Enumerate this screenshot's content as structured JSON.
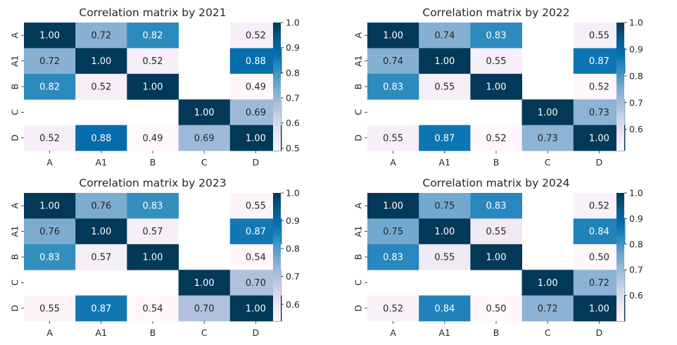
{
  "chart_data": [
    {
      "type": "heatmap",
      "title": "Correlation matrix by 2021",
      "x_labels": [
        "A",
        "A1",
        "B",
        "C",
        "D"
      ],
      "y_labels": [
        "A",
        "A1",
        "B",
        "C",
        "D"
      ],
      "values": [
        [
          1.0,
          0.72,
          0.82,
          null,
          0.52
        ],
        [
          0.72,
          1.0,
          0.52,
          null,
          0.88
        ],
        [
          0.82,
          0.52,
          1.0,
          null,
          0.49
        ],
        [
          null,
          null,
          null,
          1.0,
          0.69
        ],
        [
          0.52,
          0.88,
          0.49,
          0.69,
          1.0
        ]
      ],
      "colorbar": {
        "range": [
          0.49,
          1.0
        ],
        "ticks": [
          "0.5",
          "0.6",
          "0.7",
          "0.8",
          "0.9",
          "1.0"
        ]
      }
    },
    {
      "type": "heatmap",
      "title": "Correlation matrix by 2022",
      "x_labels": [
        "A",
        "A1",
        "B",
        "C",
        "D"
      ],
      "y_labels": [
        "A",
        "A1",
        "B",
        "C",
        "D"
      ],
      "values": [
        [
          1.0,
          0.74,
          0.83,
          null,
          0.55
        ],
        [
          0.74,
          1.0,
          0.55,
          null,
          0.87
        ],
        [
          0.83,
          0.55,
          1.0,
          null,
          0.52
        ],
        [
          null,
          null,
          null,
          1.0,
          0.73
        ],
        [
          0.55,
          0.87,
          0.52,
          0.73,
          1.0
        ]
      ],
      "colorbar": {
        "range": [
          0.52,
          1.0
        ],
        "ticks": [
          "0.6",
          "0.7",
          "0.8",
          "0.9",
          "1.0"
        ]
      }
    },
    {
      "type": "heatmap",
      "title": "Correlation matrix by 2023",
      "x_labels": [
        "A",
        "A1",
        "B",
        "C",
        "D"
      ],
      "y_labels": [
        "A",
        "A1",
        "B",
        "C",
        "D"
      ],
      "values": [
        [
          1.0,
          0.76,
          0.83,
          null,
          0.55
        ],
        [
          0.76,
          1.0,
          0.57,
          null,
          0.87
        ],
        [
          0.83,
          0.57,
          1.0,
          null,
          0.54
        ],
        [
          null,
          null,
          null,
          1.0,
          0.7
        ],
        [
          0.55,
          0.87,
          0.54,
          0.7,
          1.0
        ]
      ],
      "colorbar": {
        "range": [
          0.54,
          1.0
        ],
        "ticks": [
          "0.6",
          "0.7",
          "0.8",
          "0.9",
          "1.0"
        ]
      }
    },
    {
      "type": "heatmap",
      "title": "Correlation matrix by 2024",
      "x_labels": [
        "A",
        "A1",
        "B",
        "C",
        "D"
      ],
      "y_labels": [
        "A",
        "A1",
        "B",
        "C",
        "D"
      ],
      "values": [
        [
          1.0,
          0.75,
          0.83,
          null,
          0.52
        ],
        [
          0.75,
          1.0,
          0.55,
          null,
          0.84
        ],
        [
          0.83,
          0.55,
          1.0,
          null,
          0.5
        ],
        [
          null,
          null,
          null,
          1.0,
          0.72
        ],
        [
          0.52,
          0.84,
          0.5,
          0.72,
          1.0
        ]
      ],
      "colorbar": {
        "range": [
          0.5,
          1.0
        ],
        "ticks": [
          "0.6",
          "0.7",
          "0.8",
          "0.9",
          "1.0"
        ]
      }
    }
  ],
  "colormap": {
    "name": "PuBu",
    "stops": [
      "#fff7fb",
      "#ece7f2",
      "#d0d1e6",
      "#a6bddb",
      "#74a9cf",
      "#3690c0",
      "#0570b0",
      "#045a8d",
      "#023858"
    ]
  }
}
